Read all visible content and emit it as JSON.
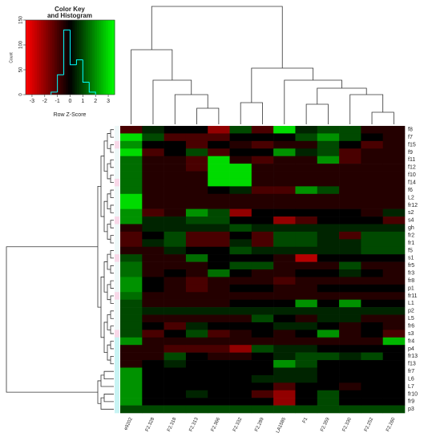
{
  "chart_data": {
    "type": "heatmap",
    "columns": [
      "e9202",
      "F2.328",
      "F2.318",
      "F2.313",
      "F2.366",
      "F2.332",
      "F2.289",
      "LA1585",
      "F1",
      "F2.359",
      "F2.330",
      "F2.252",
      "F2.260"
    ],
    "rows": [
      "f8",
      "f7",
      "f15",
      "f9",
      "f11",
      "f12",
      "f10",
      "f14",
      "f6",
      "L2",
      "fr12",
      "s2",
      "s4",
      "gh",
      "fr2",
      "fr1",
      "f5",
      "s1",
      "fr5",
      "fr3",
      "fr8",
      "p1",
      "fr11",
      "L1",
      "p2",
      "L5",
      "fr6",
      "s3",
      "fr4",
      "p4",
      "fr13",
      "f13",
      "fr7",
      "L6",
      "L7",
      "fr10",
      "fr9",
      "p3"
    ],
    "values": [
      [
        -1,
        0.5,
        0,
        0,
        -2,
        1,
        -1,
        3,
        0.5,
        1,
        1,
        -0.5,
        -0.5
      ],
      [
        3,
        1,
        -1,
        -1,
        -1,
        0,
        0,
        0,
        1,
        2,
        1,
        0,
        -0.5
      ],
      [
        2,
        0,
        0,
        -1,
        0,
        -0.5,
        -1,
        -0.5,
        -0.5,
        1,
        0,
        -1,
        -0.5
      ],
      [
        3,
        -1,
        0,
        1,
        -1,
        0,
        0,
        2,
        0.5,
        1,
        -1,
        -0.5,
        -0.5
      ],
      [
        1.5,
        -0.5,
        -0.5,
        -1,
        3,
        -0.5,
        -1,
        -0.5,
        -0.5,
        2,
        -1,
        -0.5,
        -0.5
      ],
      [
        1.5,
        -0.5,
        -0.5,
        -1,
        3,
        3,
        -0.5,
        -0.5,
        -0.5,
        -0.5,
        -0.5,
        -0.5,
        -0.5
      ],
      [
        1.5,
        -0.5,
        -0.5,
        -0.5,
        3,
        3,
        -0.5,
        -0.5,
        -0.5,
        -0.5,
        -0.5,
        -0.5,
        -0.5
      ],
      [
        1.5,
        -0.5,
        -0.5,
        -0.5,
        3,
        3,
        -0.5,
        -0.5,
        -0.5,
        -0.5,
        -0.5,
        -0.5,
        -0.5
      ],
      [
        1.5,
        -0.5,
        -0.5,
        -0.5,
        0,
        0.5,
        -1,
        -1,
        2,
        1,
        -0.5,
        -0.5,
        -0.5
      ],
      [
        3,
        -0.5,
        -0.5,
        -0.5,
        -0.5,
        -0.5,
        -0.5,
        -0.5,
        -0.5,
        -0.5,
        -0.5,
        -0.5,
        -0.5
      ],
      [
        3,
        -0.5,
        -0.5,
        -0.5,
        -0.5,
        -0.5,
        -0.5,
        -0.5,
        -0.5,
        -0.5,
        -0.5,
        -0.5,
        -0.5
      ],
      [
        2,
        -1,
        -0.5,
        2,
        1,
        -2,
        0,
        0,
        0,
        0,
        0,
        -0.5,
        0.5
      ],
      [
        2,
        0.5,
        0.5,
        1,
        1,
        0,
        0,
        -2,
        -1,
        0,
        0,
        0,
        -1
      ],
      [
        -0.5,
        0.5,
        0.5,
        0.5,
        0.5,
        1,
        0.5,
        0.5,
        0.5,
        0.5,
        0.5,
        0.5,
        0.5
      ],
      [
        -1,
        0,
        1,
        -1,
        -1,
        0,
        -1,
        1,
        1,
        0.5,
        -1,
        1,
        1
      ],
      [
        -1,
        0.5,
        1,
        -1,
        -1,
        0.5,
        -1,
        1,
        1,
        0.5,
        0.5,
        1,
        1
      ],
      [
        -0.5,
        -0.5,
        0.5,
        0,
        0,
        1,
        0.5,
        0.5,
        0.5,
        0.5,
        0.5,
        1,
        1
      ],
      [
        1,
        -0.5,
        -0.5,
        1.5,
        0,
        0,
        0,
        -0.5,
        -2.5,
        0,
        0,
        0,
        0
      ],
      [
        1.5,
        -0.5,
        -0.5,
        -0.5,
        0,
        1,
        1,
        -0.5,
        -0.5,
        -0.5,
        1,
        -0.5,
        -0.5
      ],
      [
        1.5,
        -0.5,
        0,
        -0.5,
        1.5,
        0,
        -0.5,
        -0.5,
        0,
        0,
        0.5,
        0,
        -0.5
      ],
      [
        2,
        0,
        -0.5,
        -1,
        -0.5,
        -0.5,
        -0.5,
        -1,
        -0.5,
        -0.5,
        -0.5,
        -0.5,
        -0.5
      ],
      [
        2,
        0,
        -0.5,
        -1,
        -0.5,
        0,
        0,
        -0.5,
        -0.5,
        0,
        0,
        0,
        0
      ],
      [
        1.5,
        -0.5,
        -0.5,
        -0.5,
        -0.5,
        -0.5,
        -0.5,
        -0.5,
        -0.5,
        -0.5,
        -0.5,
        -0.5,
        -0.5
      ],
      [
        1,
        -0.5,
        -0.5,
        -0.5,
        -0.5,
        0,
        0,
        0,
        2,
        0,
        2,
        0,
        0
      ],
      [
        1,
        0.5,
        0.5,
        0.5,
        0.5,
        0.5,
        0.5,
        0.5,
        0.5,
        0.5,
        0.5,
        0.5,
        0.5
      ],
      [
        1,
        -0.5,
        -0.5,
        -0.5,
        -0.5,
        -0.5,
        1,
        0,
        -0.5,
        0.5,
        0.5,
        -0.5,
        -0.5
      ],
      [
        1,
        0,
        -1,
        0.5,
        0,
        0,
        0,
        0.5,
        0.5,
        0,
        -0.5,
        0,
        -0.5
      ],
      [
        1,
        -1,
        0,
        1,
        -1,
        -0.5,
        0,
        -0.5,
        0,
        2,
        -0.5,
        0,
        -1
      ],
      [
        2,
        -0.5,
        -0.5,
        -0.5,
        -0.5,
        -0.5,
        -0.5,
        -0.5,
        -0.5,
        -0.5,
        -0.5,
        -0.5,
        2.5
      ],
      [
        -0.5,
        -0.5,
        -1,
        -1,
        -1,
        -2,
        1,
        0.5,
        0.5,
        0,
        0,
        0,
        0
      ],
      [
        -0.5,
        -0.5,
        1,
        0,
        -0.5,
        -0.5,
        0,
        0.5,
        1,
        1,
        0.5,
        1,
        0
      ],
      [
        -0.5,
        0,
        0.5,
        0,
        0,
        0,
        0,
        2,
        1,
        0,
        0,
        0,
        0
      ],
      [
        2,
        0,
        0,
        0,
        0,
        0,
        0,
        0.5,
        0.5,
        0,
        0,
        0,
        0
      ],
      [
        2,
        0,
        0,
        0,
        0,
        0,
        0.5,
        0.5,
        0.5,
        0,
        0,
        0,
        0
      ],
      [
        2,
        0,
        0,
        0,
        0,
        0,
        0,
        -1,
        0,
        0,
        -0.5,
        0,
        0
      ],
      [
        2,
        0,
        0,
        0.5,
        0,
        0,
        -1,
        -2,
        0,
        1,
        0,
        0,
        0
      ],
      [
        2,
        0,
        0,
        0,
        0,
        0,
        0,
        -2,
        0,
        1,
        0,
        0,
        0
      ],
      [
        1,
        1,
        1,
        1,
        1,
        1,
        1,
        1,
        1,
        1,
        1,
        1,
        1
      ]
    ],
    "colors": {
      "low": "#ff0000",
      "mid": "#000000",
      "high": "#00ff00"
    },
    "color_key": {
      "title": [
        "Color Key",
        "and Histogram"
      ],
      "xlabel": "Row Z-Score",
      "ylabel": "Count",
      "xlim": [
        -3.5,
        3.5
      ],
      "xticks": [
        -3,
        -2,
        -1,
        0,
        1,
        2,
        3
      ],
      "ylim": [
        0,
        150
      ],
      "yticks": [
        0,
        50,
        100,
        150
      ],
      "bins": [
        -1.5,
        -1,
        -0.5,
        0,
        0.5,
        1,
        1.5,
        2
      ],
      "counts": [
        5,
        40,
        130,
        60,
        70,
        25,
        5
      ],
      "line_color": "#00ffff"
    }
  }
}
